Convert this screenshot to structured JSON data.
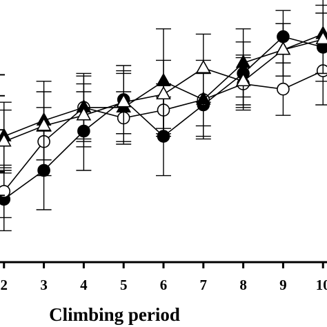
{
  "chart_data": {
    "type": "line",
    "xlabel": "Climbing period",
    "ylabel": "",
    "x": [
      2,
      3,
      4,
      5,
      6,
      7,
      8,
      9,
      10
    ],
    "xlim": [
      1.9,
      10.1
    ],
    "ylim": [
      0,
      10
    ],
    "grid": false,
    "legend": "none",
    "series": [
      {
        "marker": "filled-circle",
        "color": "#000000",
        "y": [
          2.4,
          3.5,
          5.0,
          6.2,
          4.8,
          6.0,
          7.2,
          8.6,
          8.2
        ],
        "err": [
          1.2,
          1.5,
          1.5,
          1.3,
          1.5,
          1.2,
          1.2,
          1.0,
          1.3
        ]
      },
      {
        "marker": "open-circle",
        "color": "#000000",
        "y": [
          2.7,
          4.6,
          5.9,
          5.5,
          5.8,
          6.2,
          6.8,
          6.6,
          7.3
        ],
        "err": [
          1.0,
          1.3,
          1.2,
          1.0,
          1.0,
          1.0,
          1.0,
          1.0,
          1.3
        ]
      },
      {
        "marker": "filled-triangle",
        "color": "#000000",
        "y": [
          4.8,
          5.4,
          5.9,
          5.9,
          6.9,
          6.2,
          7.6,
          8.1,
          8.7
        ],
        "err": [
          1.3,
          1.5,
          1.3,
          1.3,
          2.0,
          1.5,
          1.3,
          1.0,
          1.5
        ]
      },
      {
        "marker": "open-triangle",
        "color": "#000000",
        "y": [
          4.6,
          5.2,
          5.6,
          6.1,
          6.4,
          7.4,
          6.9,
          8.1,
          8.5
        ],
        "err": [
          1.2,
          1.3,
          1.2,
          1.2,
          1.3,
          1.3,
          1.0,
          1.0,
          1.3
        ]
      }
    ]
  }
}
